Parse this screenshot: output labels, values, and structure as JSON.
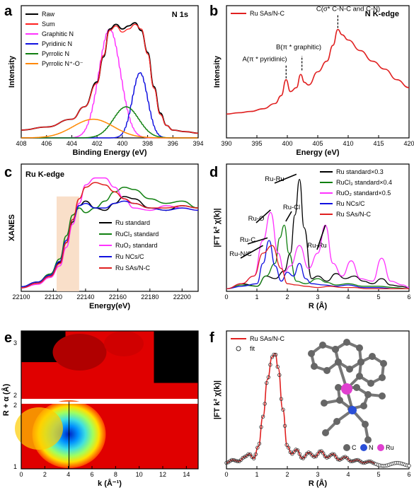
{
  "chart_data": [
    {
      "panel": "a",
      "type": "line",
      "title": "N 1s",
      "xlabel": "Binding Energy (eV)",
      "ylabel": "Intensity",
      "xlim": [
        408,
        394
      ],
      "x_ticks": [
        "408",
        "406",
        "404",
        "402",
        "400",
        "398",
        "396",
        "394"
      ],
      "series": [
        {
          "name": "Raw",
          "color": "#000000",
          "x": [
            408,
            406,
            404,
            403,
            402,
            401.5,
            401,
            400.5,
            400,
            399.5,
            399,
            398.5,
            398,
            397.5,
            397,
            396.5,
            396,
            395,
            394
          ],
          "values": [
            0.05,
            0.07,
            0.12,
            0.2,
            0.36,
            0.52,
            0.7,
            0.73,
            0.7,
            0.72,
            0.74,
            0.69,
            0.55,
            0.33,
            0.16,
            0.08,
            0.05,
            0.04,
            0.03
          ]
        },
        {
          "name": "Sum",
          "color": "#ff2020",
          "x": [
            408,
            406,
            404,
            403,
            402,
            401.5,
            401,
            400.5,
            400,
            399.5,
            399,
            398.5,
            398,
            397.5,
            397,
            396.5,
            396,
            395,
            394
          ],
          "values": [
            0.05,
            0.07,
            0.12,
            0.2,
            0.35,
            0.53,
            0.69,
            0.72,
            0.68,
            0.7,
            0.73,
            0.7,
            0.54,
            0.32,
            0.15,
            0.08,
            0.05,
            0.04,
            0.03
          ]
        },
        {
          "name": "Graphitic N",
          "color": "#ff33ff",
          "center": 401,
          "height": 0.7,
          "width": 0.85
        },
        {
          "name": "Pyridinic N",
          "color": "#1010e0",
          "center": 398.6,
          "height": 0.42,
          "width": 0.6
        },
        {
          "name": "Pyrrolic N",
          "color": "#108010",
          "center": 399.7,
          "height": 0.2,
          "width": 1.0
        },
        {
          "name": "Pyrrolic N⁺-O⁻",
          "color": "#ff8800",
          "center": 402.3,
          "height": 0.12,
          "width": 1.6
        }
      ]
    },
    {
      "panel": "b",
      "type": "line",
      "title": "N  K-edge",
      "xlabel": "Energy (eV)",
      "ylabel": "Intensity",
      "xlim": [
        390,
        420
      ],
      "x_ticks": [
        "390",
        "395",
        "400",
        "405",
        "410",
        "415",
        "420"
      ],
      "series": [
        {
          "name": "Ru SAs/N-C",
          "color": "#e02020",
          "x": [
            390,
            392,
            394,
            396,
            398,
            399,
            399.8,
            400.5,
            401.5,
            402.2,
            402.8,
            403.5,
            405,
            406.5,
            407.5,
            408.3,
            409,
            410,
            412,
            414,
            416,
            418,
            420
          ],
          "values": [
            0.18,
            0.19,
            0.2,
            0.22,
            0.26,
            0.32,
            0.44,
            0.35,
            0.38,
            0.48,
            0.42,
            0.4,
            0.5,
            0.58,
            0.7,
            0.82,
            0.78,
            0.74,
            0.66,
            0.58,
            0.52,
            0.44,
            0.38
          ]
        }
      ],
      "annotations": [
        "A(π * pyridinic)",
        "B(π * graphitic)",
        "C(σ* C-N-C and C-N)"
      ]
    },
    {
      "panel": "c",
      "type": "line",
      "title": "Ru  K-edge",
      "xlabel": "Energy(eV)",
      "ylabel": "XANES",
      "xlim": [
        22100,
        22210
      ],
      "x_ticks": [
        "22100",
        "22120",
        "22140",
        "22160",
        "22180",
        "22200"
      ],
      "highlight": [
        22122,
        22136
      ],
      "series": [
        {
          "name": "Ru standard",
          "color": "#000000",
          "x": [
            22100,
            22110,
            22118,
            22124,
            22128,
            22132,
            22136,
            22140,
            22146,
            22152,
            22158,
            22164,
            22170,
            22180,
            22190,
            22200,
            22210
          ],
          "values": [
            0.04,
            0.08,
            0.14,
            0.25,
            0.42,
            0.6,
            0.74,
            0.78,
            0.72,
            0.7,
            0.76,
            0.82,
            0.8,
            0.72,
            0.7,
            0.74,
            0.72
          ]
        },
        {
          "name": "RuCl₃ standard",
          "color": "#108010",
          "x": [
            22100,
            22110,
            22118,
            22124,
            22128,
            22132,
            22136,
            22140,
            22146,
            22152,
            22158,
            22164,
            22170,
            22180,
            22190,
            22200,
            22210
          ],
          "values": [
            0.04,
            0.08,
            0.15,
            0.28,
            0.48,
            0.66,
            0.72,
            0.68,
            0.72,
            0.78,
            0.86,
            0.9,
            0.88,
            0.8,
            0.76,
            0.78,
            0.72
          ]
        },
        {
          "name": "RuO₂ standard",
          "color": "#ff33ff",
          "x": [
            22100,
            22110,
            22118,
            22124,
            22128,
            22132,
            22136,
            22140,
            22146,
            22152,
            22158,
            22164,
            22170,
            22180,
            22190,
            22200,
            22210
          ],
          "values": [
            0.03,
            0.06,
            0.12,
            0.22,
            0.38,
            0.58,
            0.76,
            0.92,
            0.98,
            0.98,
            0.9,
            0.8,
            0.72,
            0.7,
            0.74,
            0.72,
            0.7
          ]
        },
        {
          "name": "Ru NCs/C",
          "color": "#1010e0",
          "x": [
            22100,
            22110,
            22118,
            22124,
            22128,
            22132,
            22136,
            22140,
            22146,
            22152,
            22158,
            22164,
            22170,
            22180,
            22190,
            22200,
            22210
          ],
          "values": [
            0.04,
            0.08,
            0.14,
            0.26,
            0.44,
            0.62,
            0.74,
            0.76,
            0.72,
            0.72,
            0.76,
            0.78,
            0.76,
            0.72,
            0.7,
            0.72,
            0.7
          ]
        },
        {
          "name": "Ru SAs/N-C",
          "color": "#e02020",
          "x": [
            22100,
            22110,
            22118,
            22124,
            22128,
            22132,
            22136,
            22140,
            22146,
            22152,
            22158,
            22164,
            22170,
            22180,
            22190,
            22200,
            22210
          ],
          "values": [
            0.03,
            0.07,
            0.13,
            0.24,
            0.42,
            0.62,
            0.8,
            0.9,
            0.94,
            0.92,
            0.86,
            0.8,
            0.76,
            0.72,
            0.72,
            0.74,
            0.72
          ]
        }
      ],
      "legend_placement": "bottom-right"
    },
    {
      "panel": "d",
      "type": "line",
      "xlabel": "R (Å)",
      "ylabel": "|FT k² χ(k)|",
      "xlim": [
        0,
        6
      ],
      "x_ticks": [
        "0",
        "1",
        "2",
        "3",
        "4",
        "5",
        "6"
      ],
      "series": [
        {
          "name": "Ru standard×0.3",
          "color": "#000000",
          "x": [
            0,
            0.5,
            1,
            1.3,
            1.6,
            1.9,
            2.1,
            2.25,
            2.4,
            2.55,
            2.8,
            3,
            3.3,
            3.6,
            3.9,
            4.2,
            4.5,
            4.8,
            5.1,
            5.4,
            5.7,
            6
          ],
          "values": [
            0.02,
            0.06,
            0.04,
            0.12,
            0.1,
            0.16,
            0.3,
            0.6,
            0.88,
            0.5,
            0.1,
            0.12,
            0.08,
            0.14,
            0.1,
            0.12,
            0.08,
            0.06,
            0.1,
            0.05,
            0.04,
            0.03
          ]
        },
        {
          "name": "RuCl₃ standard×0.4",
          "color": "#108010",
          "x": [
            0,
            0.5,
            1,
            1.3,
            1.6,
            1.75,
            1.9,
            2.05,
            2.3,
            2.6,
            3,
            3.3,
            3.6,
            4,
            4.5,
            5,
            5.5,
            6
          ],
          "values": [
            0.02,
            0.05,
            0.04,
            0.12,
            0.22,
            0.42,
            0.52,
            0.3,
            0.08,
            0.06,
            0.1,
            0.07,
            0.05,
            0.06,
            0.04,
            0.04,
            0.03,
            0.02
          ]
        },
        {
          "name": "RuO₂ standard×0.5",
          "color": "#ff33ff",
          "x": [
            0,
            0.5,
            0.9,
            1.2,
            1.45,
            1.7,
            1.9,
            2.1,
            2.4,
            2.7,
            3,
            3.25,
            3.5,
            3.8,
            4.1,
            4.4,
            4.8,
            5.1,
            5.4,
            5.8,
            6
          ],
          "values": [
            0.02,
            0.06,
            0.12,
            0.4,
            0.62,
            0.3,
            0.15,
            0.2,
            0.36,
            0.18,
            0.3,
            0.52,
            0.22,
            0.12,
            0.24,
            0.1,
            0.08,
            0.26,
            0.08,
            0.05,
            0.03
          ]
        },
        {
          "name": "Ru NCs/C",
          "color": "#1010e0",
          "x": [
            0,
            0.5,
            1,
            1.2,
            1.4,
            1.6,
            1.8,
            2,
            2.2,
            2.4,
            2.6,
            2.8,
            3.2,
            3.6,
            4,
            4.5,
            5,
            5.5,
            6
          ],
          "values": [
            0.02,
            0.04,
            0.06,
            0.22,
            0.4,
            0.2,
            0.08,
            0.15,
            0.12,
            0.22,
            0.1,
            0.06,
            0.05,
            0.04,
            0.05,
            0.03,
            0.03,
            0.02,
            0.02
          ]
        },
        {
          "name": "Ru SAs/N-C",
          "color": "#e02020",
          "x": [
            0,
            0.5,
            0.9,
            1.2,
            1.5,
            1.8,
            2,
            2.3,
            2.6,
            3,
            3.4,
            3.8,
            4.2,
            4.6,
            5,
            5.5,
            6
          ],
          "values": [
            0.02,
            0.06,
            0.12,
            0.3,
            0.36,
            0.18,
            0.06,
            0.05,
            0.04,
            0.03,
            0.04,
            0.03,
            0.03,
            0.02,
            0.02,
            0.02,
            0.02
          ]
        }
      ],
      "annotations": [
        "Ru-Ru",
        "Ru-O",
        "Ru-Cl",
        "Ru-C",
        "Ru-N/C",
        "Ru-Ru"
      ],
      "legend_placement": "top-right"
    },
    {
      "panel": "e",
      "type": "heatmap",
      "xlabel": "k (Å⁻¹)",
      "ylabel": "R + α (Å)",
      "x_ticks": [
        "0",
        "2",
        "4",
        "6",
        "8",
        "10",
        "12",
        "14"
      ],
      "y_ticks_top": [
        "2",
        "3"
      ],
      "y_ticks_bottom": [
        "1",
        "2"
      ],
      "xlim": [
        0,
        15
      ]
    },
    {
      "panel": "f",
      "type": "line",
      "xlabel": "R (Å)",
      "ylabel": "|FT k² χ(k)|",
      "xlim": [
        0,
        6
      ],
      "x_ticks": [
        "0",
        "1",
        "2",
        "3",
        "4",
        "5",
        "6"
      ],
      "series": [
        {
          "name": "Ru SAs/N-C",
          "color": "#e02020",
          "x": [
            0,
            0.2,
            0.4,
            0.6,
            0.75,
            0.9,
            1.05,
            1.2,
            1.35,
            1.5,
            1.6,
            1.7,
            1.85,
            2,
            2.15,
            2.3,
            2.5,
            2.7,
            2.9,
            3.1,
            3.3,
            3.5,
            3.7,
            3.9,
            4.1,
            4.3,
            4.5,
            4.7,
            4.9
          ],
          "values": [
            0.08,
            0.12,
            0.1,
            0.16,
            0.2,
            0.14,
            0.3,
            0.7,
            1.2,
            1.5,
            1.55,
            1.35,
            0.8,
            0.3,
            0.2,
            0.26,
            0.14,
            0.22,
            0.16,
            0.24,
            0.15,
            0.2,
            0.12,
            0.16,
            0.1,
            0.12,
            0.08,
            0.1,
            0.07
          ]
        },
        {
          "name": "fit",
          "color": "#000000",
          "marker": "circle"
        }
      ],
      "legend_placement": "top-left",
      "inset_legend": [
        "C",
        "N",
        "Ru"
      ]
    }
  ]
}
